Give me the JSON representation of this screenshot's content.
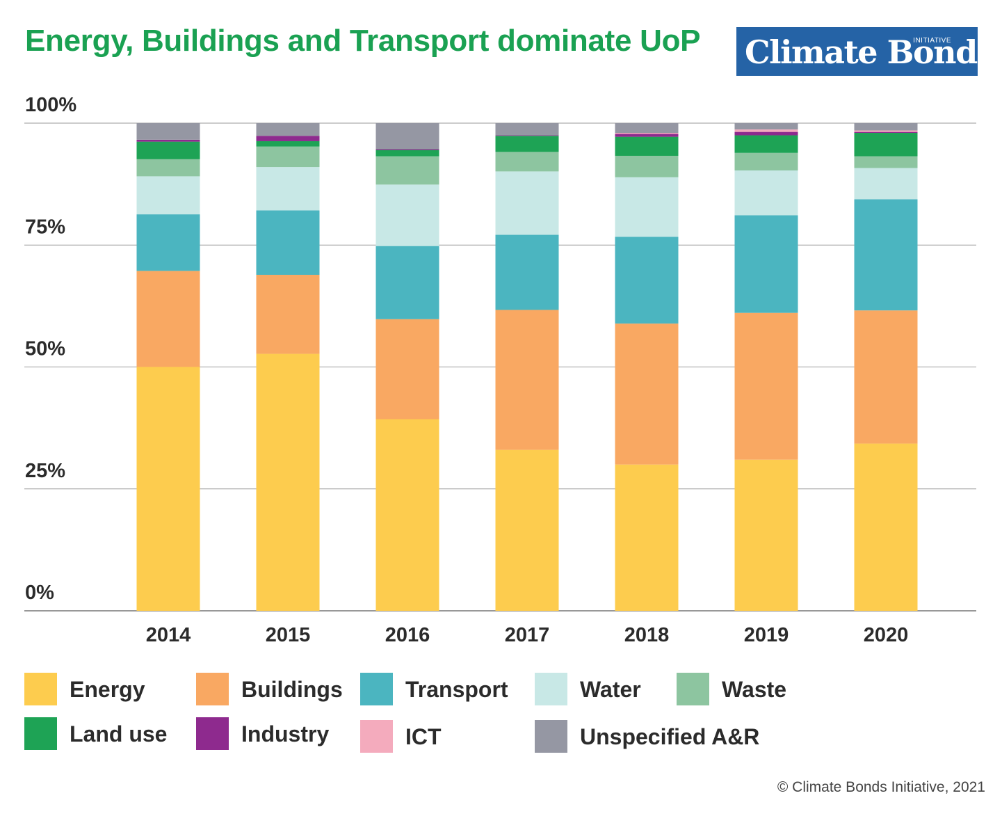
{
  "header": {
    "title": "Energy, Buildings and Transport dominate UoP"
  },
  "logo": {
    "text": "Climate Bonds",
    "subtext": "INITIATIVE",
    "color": "#2563a6"
  },
  "footer": {
    "credit": "© Climate Bonds Initiative, 2021"
  },
  "chart_data": {
    "type": "bar",
    "stacked": true,
    "percent": true,
    "title": "Energy, Buildings and Transport dominate UoP",
    "xlabel": "",
    "ylabel": "",
    "ylim": [
      0,
      100
    ],
    "yticks": [
      "0%",
      "25%",
      "50%",
      "75%",
      "100%"
    ],
    "grid": true,
    "legend_position": "bottom",
    "categories": [
      "2014",
      "2015",
      "2016",
      "2017",
      "2018",
      "2019",
      "2020"
    ],
    "series": [
      {
        "name": "Energy",
        "color": "#fdcc4e",
        "values": [
          50.0,
          52.7,
          39.3,
          33.0,
          30.0,
          31.0,
          34.3
        ]
      },
      {
        "name": "Buildings",
        "color": "#f9a862",
        "values": [
          19.7,
          16.2,
          20.5,
          28.7,
          28.9,
          30.1,
          27.3
        ]
      },
      {
        "name": "Transport",
        "color": "#4bb5c0",
        "values": [
          11.6,
          13.2,
          15.0,
          15.4,
          17.8,
          20.0,
          22.8
        ]
      },
      {
        "name": "Water",
        "color": "#c8e8e6",
        "values": [
          7.8,
          8.9,
          12.6,
          13.0,
          12.2,
          9.2,
          6.4
        ]
      },
      {
        "name": "Waste",
        "color": "#8dc5a0",
        "values": [
          3.5,
          4.2,
          5.8,
          4.0,
          4.4,
          3.6,
          2.4
        ]
      },
      {
        "name": "Land use",
        "color": "#1ea355",
        "values": [
          3.6,
          1.1,
          1.3,
          3.3,
          3.9,
          3.6,
          4.8
        ]
      },
      {
        "name": "Industry",
        "color": "#8e2a8e",
        "values": [
          0.4,
          1.1,
          0.2,
          0.1,
          0.6,
          0.7,
          0.2
        ]
      },
      {
        "name": "ICT",
        "color": "#f4abbd",
        "values": [
          0.0,
          0.0,
          0.0,
          0.0,
          0.2,
          0.5,
          0.3
        ]
      },
      {
        "name": "Unspecified A&R",
        "color": "#9597a3",
        "values": [
          3.4,
          2.6,
          5.3,
          2.5,
          2.0,
          1.3,
          1.5
        ]
      }
    ]
  }
}
